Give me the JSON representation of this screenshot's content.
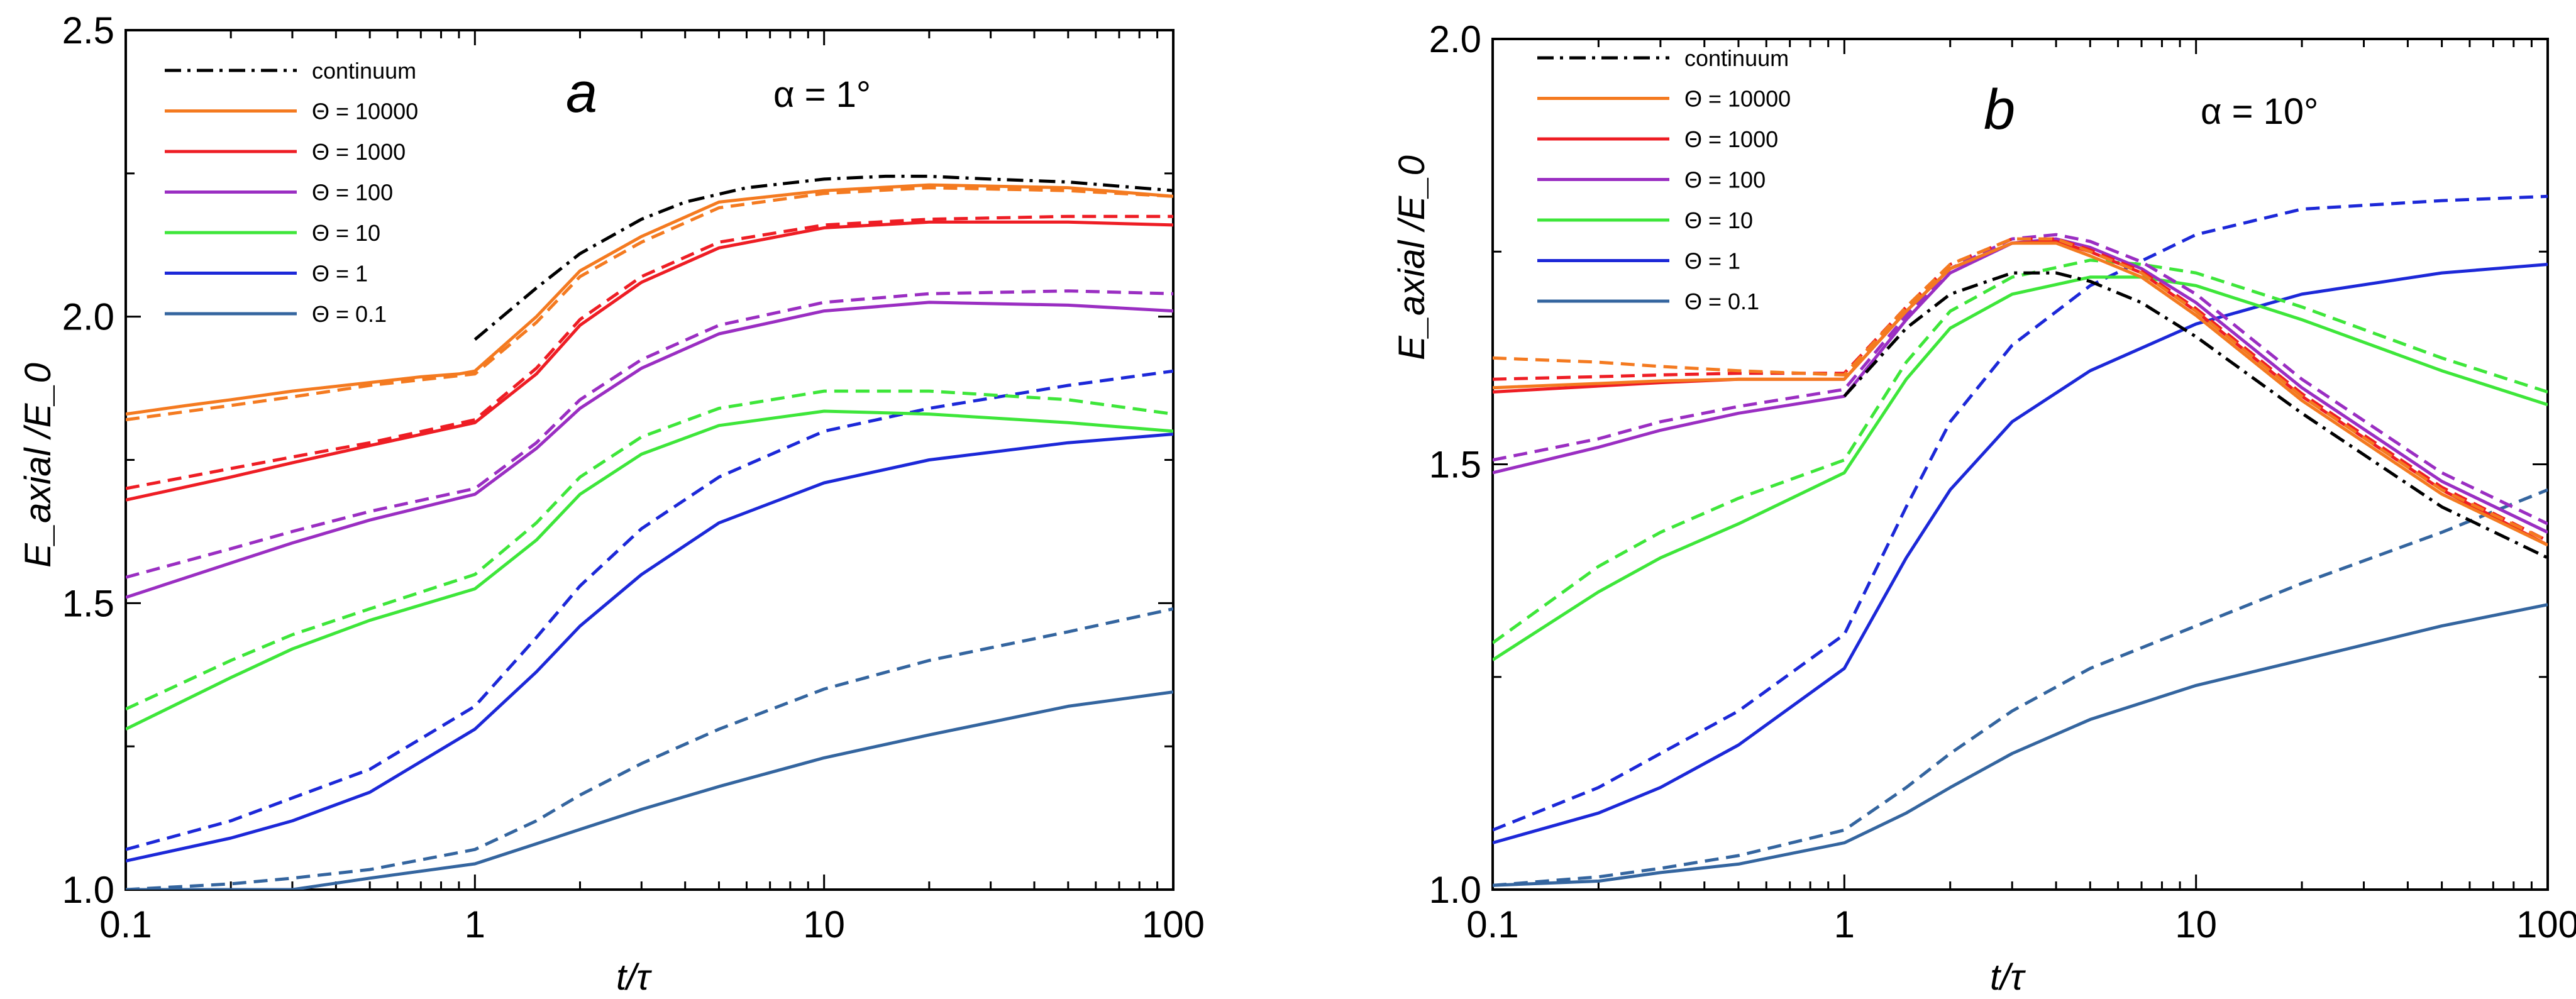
{
  "chart_data": [
    {
      "type": "line",
      "panel_label": "a",
      "annotation": "α = 1°",
      "title": "",
      "xlabel": "t/τ",
      "ylabel": "E_axial /E_0",
      "xscale": "log",
      "xlim": [
        0.1,
        100
      ],
      "ylim": [
        1.0,
        2.5
      ],
      "xticks": [
        0.1,
        1,
        10,
        100
      ],
      "xtick_labels": [
        "0.1",
        "1",
        "10",
        "100"
      ],
      "yticks": [
        1.0,
        1.5,
        2.0,
        2.5
      ],
      "ytick_labels": [
        "1.0",
        "1.5",
        "2.0",
        "2.5"
      ],
      "legend_position": "top-left",
      "legend": [
        "continuum",
        "Θ = 10000",
        "Θ = 1000",
        "Θ = 100",
        "Θ = 10",
        "Θ = 1",
        "Θ = 0.1"
      ],
      "series": [
        {
          "name": "continuum",
          "color": "#000000",
          "style": "dashdot",
          "x": [
            1,
            1.5,
            2,
            3,
            4,
            6,
            10,
            15,
            20,
            30,
            50,
            100
          ],
          "y": [
            1.96,
            2.05,
            2.11,
            2.17,
            2.2,
            2.225,
            2.24,
            2.245,
            2.245,
            2.24,
            2.235,
            2.22
          ]
        },
        {
          "name": "Θ = 10000",
          "color": "#f47a20",
          "style": "solid",
          "x": [
            0.1,
            0.15,
            0.2,
            0.3,
            0.5,
            0.7,
            0.9,
            1,
            1.5,
            2,
            3,
            5,
            10,
            20,
            50,
            100
          ],
          "y": [
            1.83,
            1.845,
            1.855,
            1.87,
            1.885,
            1.895,
            1.9,
            1.905,
            2.0,
            2.08,
            2.14,
            2.2,
            2.22,
            2.23,
            2.225,
            2.21
          ]
        },
        {
          "name": "Θ = 10000 (dashed)",
          "color": "#f47a20",
          "style": "dashed",
          "x": [
            0.1,
            0.2,
            0.3,
            0.5,
            1,
            1.5,
            2,
            3,
            5,
            10,
            20,
            50,
            100
          ],
          "y": [
            1.82,
            1.845,
            1.86,
            1.88,
            1.9,
            1.99,
            2.07,
            2.13,
            2.19,
            2.215,
            2.225,
            2.22,
            2.21
          ]
        },
        {
          "name": "Θ = 1000",
          "color": "#ee1d24",
          "style": "solid",
          "x": [
            0.1,
            0.2,
            0.3,
            0.5,
            1,
            1.5,
            2,
            3,
            5,
            10,
            20,
            50,
            100
          ],
          "y": [
            1.68,
            1.72,
            1.745,
            1.775,
            1.815,
            1.9,
            1.985,
            2.06,
            2.12,
            2.155,
            2.165,
            2.165,
            2.16
          ]
        },
        {
          "name": "Θ = 1000 (dashed)",
          "color": "#ee1d24",
          "style": "dashed",
          "x": [
            0.1,
            0.2,
            0.3,
            0.5,
            1,
            1.5,
            2,
            3,
            5,
            10,
            20,
            50,
            100
          ],
          "y": [
            1.7,
            1.735,
            1.755,
            1.78,
            1.82,
            1.91,
            1.995,
            2.07,
            2.13,
            2.16,
            2.17,
            2.175,
            2.175
          ]
        },
        {
          "name": "Θ = 100",
          "color": "#9a2ec2",
          "style": "solid",
          "x": [
            0.1,
            0.2,
            0.3,
            0.5,
            1,
            1.5,
            2,
            3,
            5,
            10,
            20,
            50,
            100
          ],
          "y": [
            1.51,
            1.57,
            1.605,
            1.645,
            1.69,
            1.77,
            1.84,
            1.91,
            1.97,
            2.01,
            2.025,
            2.02,
            2.01
          ]
        },
        {
          "name": "Θ = 100 (dashed)",
          "color": "#9a2ec2",
          "style": "dashed",
          "x": [
            0.1,
            0.2,
            0.3,
            0.5,
            1,
            1.5,
            2,
            3,
            5,
            10,
            20,
            50,
            100
          ],
          "y": [
            1.545,
            1.595,
            1.625,
            1.66,
            1.7,
            1.78,
            1.855,
            1.925,
            1.985,
            2.025,
            2.04,
            2.045,
            2.04
          ]
        },
        {
          "name": "Θ = 10",
          "color": "#3ee63a",
          "style": "solid",
          "x": [
            0.1,
            0.2,
            0.3,
            0.5,
            1,
            1.5,
            2,
            3,
            5,
            10,
            20,
            50,
            100
          ],
          "y": [
            1.28,
            1.37,
            1.42,
            1.47,
            1.525,
            1.61,
            1.69,
            1.76,
            1.81,
            1.835,
            1.83,
            1.815,
            1.8
          ]
        },
        {
          "name": "Θ = 10 (dashed)",
          "color": "#3ee63a",
          "style": "dashed",
          "x": [
            0.1,
            0.2,
            0.3,
            0.5,
            1,
            1.5,
            2,
            3,
            5,
            10,
            20,
            50,
            100
          ],
          "y": [
            1.315,
            1.4,
            1.445,
            1.49,
            1.55,
            1.64,
            1.72,
            1.79,
            1.84,
            1.87,
            1.87,
            1.855,
            1.83
          ]
        },
        {
          "name": "Θ = 1",
          "color": "#1c28d8",
          "style": "solid",
          "x": [
            0.1,
            0.2,
            0.3,
            0.5,
            1,
            1.5,
            2,
            3,
            5,
            10,
            20,
            50,
            100
          ],
          "y": [
            1.05,
            1.09,
            1.12,
            1.17,
            1.28,
            1.38,
            1.46,
            1.55,
            1.64,
            1.71,
            1.75,
            1.78,
            1.795
          ]
        },
        {
          "name": "Θ = 1 (dashed)",
          "color": "#1c28d8",
          "style": "dashed",
          "x": [
            0.1,
            0.2,
            0.3,
            0.5,
            1,
            1.5,
            2,
            3,
            5,
            10,
            20,
            50,
            100
          ],
          "y": [
            1.07,
            1.12,
            1.16,
            1.21,
            1.32,
            1.44,
            1.53,
            1.63,
            1.72,
            1.8,
            1.84,
            1.88,
            1.905
          ]
        },
        {
          "name": "Θ = 0.1",
          "color": "#34659f",
          "style": "solid",
          "x": [
            0.1,
            0.2,
            0.3,
            0.5,
            1,
            1.5,
            2,
            3,
            5,
            10,
            20,
            50,
            100
          ],
          "y": [
            1.0,
            1.0,
            1.0,
            1.02,
            1.045,
            1.08,
            1.105,
            1.14,
            1.18,
            1.23,
            1.27,
            1.32,
            1.345
          ]
        },
        {
          "name": "Θ = 0.1 (dashed)",
          "color": "#34659f",
          "style": "dashed",
          "x": [
            0.1,
            0.2,
            0.3,
            0.5,
            1,
            1.5,
            2,
            3,
            5,
            10,
            20,
            50,
            100
          ],
          "y": [
            1.0,
            1.01,
            1.02,
            1.035,
            1.07,
            1.12,
            1.165,
            1.22,
            1.28,
            1.35,
            1.4,
            1.45,
            1.49
          ]
        }
      ]
    },
    {
      "type": "line",
      "panel_label": "b",
      "annotation": "α = 10°",
      "title": "",
      "xlabel": "t/τ",
      "ylabel": "E_axial /E_0",
      "xscale": "log",
      "xlim": [
        0.1,
        100
      ],
      "ylim": [
        1.0,
        2.0
      ],
      "xticks": [
        0.1,
        1,
        10,
        100
      ],
      "xtick_labels": [
        "0.1",
        "1",
        "10",
        "100"
      ],
      "yticks": [
        1.0,
        1.5,
        2.0
      ],
      "ytick_labels": [
        "1.0",
        "1.5",
        "2.0"
      ],
      "legend_position": "top-left",
      "legend": [
        "continuum",
        "Θ = 10000",
        "Θ = 1000",
        "Θ = 100",
        "Θ = 10",
        "Θ = 1",
        "Θ = 0.1"
      ],
      "series": [
        {
          "name": "continuum",
          "color": "#000000",
          "style": "dashdot",
          "x": [
            1,
            1.5,
            2,
            3,
            4,
            5,
            7,
            10,
            20,
            50,
            100
          ],
          "y": [
            1.58,
            1.66,
            1.7,
            1.725,
            1.725,
            1.715,
            1.69,
            1.65,
            1.56,
            1.45,
            1.39
          ]
        },
        {
          "name": "Θ = 10000",
          "color": "#f47a20",
          "style": "solid",
          "x": [
            0.1,
            0.2,
            0.3,
            0.5,
            1,
            1.5,
            2,
            3,
            4,
            5,
            7,
            10,
            20,
            50,
            100
          ],
          "y": [
            1.59,
            1.595,
            1.598,
            1.6,
            1.6,
            1.68,
            1.73,
            1.76,
            1.76,
            1.745,
            1.72,
            1.675,
            1.575,
            1.465,
            1.405
          ]
        },
        {
          "name": "Θ = 10000 (dashed)",
          "color": "#f47a20",
          "style": "dashed",
          "x": [
            0.1,
            0.2,
            0.3,
            0.5,
            1,
            1.5,
            2,
            3,
            4,
            5,
            7,
            10,
            20,
            50,
            100
          ],
          "y": [
            1.625,
            1.62,
            1.615,
            1.61,
            1.605,
            1.685,
            1.735,
            1.765,
            1.765,
            1.75,
            1.725,
            1.68,
            1.58,
            1.47,
            1.41
          ]
        },
        {
          "name": "Θ = 1000",
          "color": "#ee1d24",
          "style": "solid",
          "x": [
            0.1,
            0.2,
            0.3,
            0.5,
            1,
            1.5,
            2,
            3,
            4,
            5,
            7,
            10,
            20,
            50,
            100
          ],
          "y": [
            1.585,
            1.592,
            1.596,
            1.6,
            1.6,
            1.68,
            1.73,
            1.76,
            1.762,
            1.75,
            1.725,
            1.68,
            1.58,
            1.47,
            1.405
          ]
        },
        {
          "name": "Θ = 1000 (dashed)",
          "color": "#ee1d24",
          "style": "dashed",
          "x": [
            0.1,
            0.2,
            0.3,
            0.5,
            1,
            1.5,
            2,
            3,
            4,
            5,
            7,
            10,
            20,
            50,
            100
          ],
          "y": [
            1.6,
            1.603,
            1.605,
            1.607,
            1.607,
            1.685,
            1.735,
            1.765,
            1.765,
            1.752,
            1.727,
            1.683,
            1.583,
            1.473,
            1.41
          ]
        },
        {
          "name": "Θ = 100",
          "color": "#9a2ec2",
          "style": "solid",
          "x": [
            0.1,
            0.2,
            0.3,
            0.5,
            1,
            1.5,
            2,
            3,
            4,
            5,
            7,
            10,
            20,
            50,
            100
          ],
          "y": [
            1.49,
            1.52,
            1.54,
            1.56,
            1.58,
            1.67,
            1.725,
            1.76,
            1.765,
            1.755,
            1.73,
            1.69,
            1.59,
            1.48,
            1.42
          ]
        },
        {
          "name": "Θ = 100 (dashed)",
          "color": "#9a2ec2",
          "style": "dashed",
          "x": [
            0.1,
            0.2,
            0.3,
            0.5,
            1,
            1.5,
            2,
            3,
            4,
            5,
            7,
            10,
            20,
            50,
            100
          ],
          "y": [
            1.505,
            1.53,
            1.55,
            1.568,
            1.588,
            1.675,
            1.73,
            1.765,
            1.77,
            1.762,
            1.738,
            1.7,
            1.6,
            1.49,
            1.43
          ]
        },
        {
          "name": "Θ = 10",
          "color": "#3ee63a",
          "style": "solid",
          "x": [
            0.1,
            0.2,
            0.3,
            0.5,
            1,
            1.5,
            2,
            3,
            5,
            7,
            10,
            20,
            50,
            100
          ],
          "y": [
            1.27,
            1.35,
            1.39,
            1.43,
            1.49,
            1.6,
            1.66,
            1.7,
            1.72,
            1.72,
            1.71,
            1.67,
            1.61,
            1.57
          ]
        },
        {
          "name": "Θ = 10 (dashed)",
          "color": "#3ee63a",
          "style": "dashed",
          "x": [
            0.1,
            0.2,
            0.3,
            0.5,
            1,
            1.5,
            2,
            3,
            5,
            7,
            10,
            20,
            50,
            100
          ],
          "y": [
            1.29,
            1.38,
            1.42,
            1.46,
            1.505,
            1.62,
            1.68,
            1.72,
            1.74,
            1.735,
            1.725,
            1.685,
            1.625,
            1.585
          ]
        },
        {
          "name": "Θ = 1",
          "color": "#1c28d8",
          "style": "solid",
          "x": [
            0.1,
            0.2,
            0.3,
            0.5,
            1,
            1.5,
            2,
            3,
            5,
            10,
            20,
            50,
            100
          ],
          "y": [
            1.055,
            1.09,
            1.12,
            1.17,
            1.26,
            1.39,
            1.47,
            1.55,
            1.61,
            1.665,
            1.7,
            1.725,
            1.735
          ]
        },
        {
          "name": "Θ = 1 (dashed)",
          "color": "#1c28d8",
          "style": "dashed",
          "x": [
            0.1,
            0.2,
            0.3,
            0.5,
            1,
            1.5,
            2,
            3,
            5,
            10,
            20,
            50,
            100
          ],
          "y": [
            1.07,
            1.12,
            1.16,
            1.21,
            1.3,
            1.45,
            1.55,
            1.64,
            1.71,
            1.77,
            1.8,
            1.81,
            1.815
          ]
        },
        {
          "name": "Θ = 0.1",
          "color": "#34659f",
          "style": "solid",
          "x": [
            0.1,
            0.2,
            0.3,
            0.5,
            1,
            1.5,
            2,
            3,
            5,
            10,
            20,
            50,
            100
          ],
          "y": [
            1.005,
            1.01,
            1.02,
            1.03,
            1.055,
            1.09,
            1.12,
            1.16,
            1.2,
            1.24,
            1.27,
            1.31,
            1.335
          ]
        },
        {
          "name": "Θ = 0.1 (dashed)",
          "color": "#34659f",
          "style": "dashed",
          "x": [
            0.1,
            0.2,
            0.3,
            0.5,
            1,
            1.5,
            2,
            3,
            5,
            10,
            20,
            50,
            100
          ],
          "y": [
            1.005,
            1.015,
            1.025,
            1.04,
            1.07,
            1.12,
            1.16,
            1.21,
            1.26,
            1.31,
            1.36,
            1.42,
            1.47
          ]
        }
      ]
    }
  ]
}
